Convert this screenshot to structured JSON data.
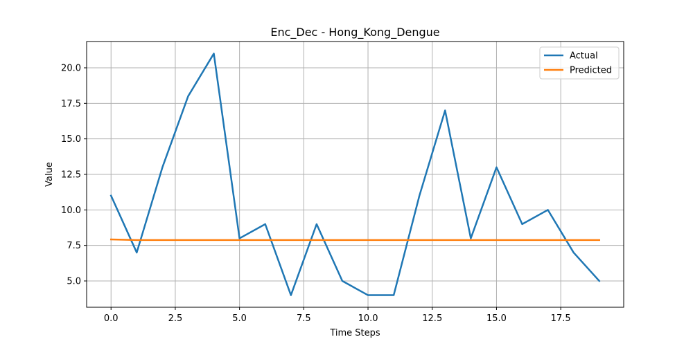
{
  "chart_data": {
    "type": "line",
    "title": "Enc_Dec - Hong_Kong_Dengue",
    "xlabel": "Time Steps",
    "ylabel": "Value",
    "xlim": [
      -0.95,
      19.95
    ],
    "ylim": [
      3.15,
      21.85
    ],
    "xticks": [
      0.0,
      2.5,
      5.0,
      7.5,
      10.0,
      12.5,
      15.0,
      17.5
    ],
    "xtick_labels": [
      "0.0",
      "2.5",
      "5.0",
      "7.5",
      "10.0",
      "12.5",
      "15.0",
      "17.5"
    ],
    "yticks": [
      5.0,
      7.5,
      10.0,
      12.5,
      15.0,
      17.5,
      20.0
    ],
    "ytick_labels": [
      "5.0",
      "7.5",
      "10.0",
      "12.5",
      "15.0",
      "17.5",
      "20.0"
    ],
    "grid": true,
    "legend_position": "top-right",
    "x": [
      0,
      1,
      2,
      3,
      4,
      5,
      6,
      7,
      8,
      9,
      10,
      11,
      12,
      13,
      14,
      15,
      16,
      17,
      18,
      19
    ],
    "series": [
      {
        "name": "Actual",
        "color": "#1f77b4",
        "values": [
          11,
          7,
          13,
          18,
          21,
          8,
          9,
          4,
          9,
          5,
          4,
          4,
          11,
          17,
          8,
          13,
          9,
          10,
          7,
          5
        ]
      },
      {
        "name": "Predicted",
        "color": "#ff7f0e",
        "values": [
          7.92,
          7.88,
          7.88,
          7.88,
          7.88,
          7.88,
          7.88,
          7.88,
          7.88,
          7.88,
          7.88,
          7.88,
          7.88,
          7.88,
          7.88,
          7.88,
          7.88,
          7.88,
          7.88,
          7.88
        ]
      }
    ]
  }
}
